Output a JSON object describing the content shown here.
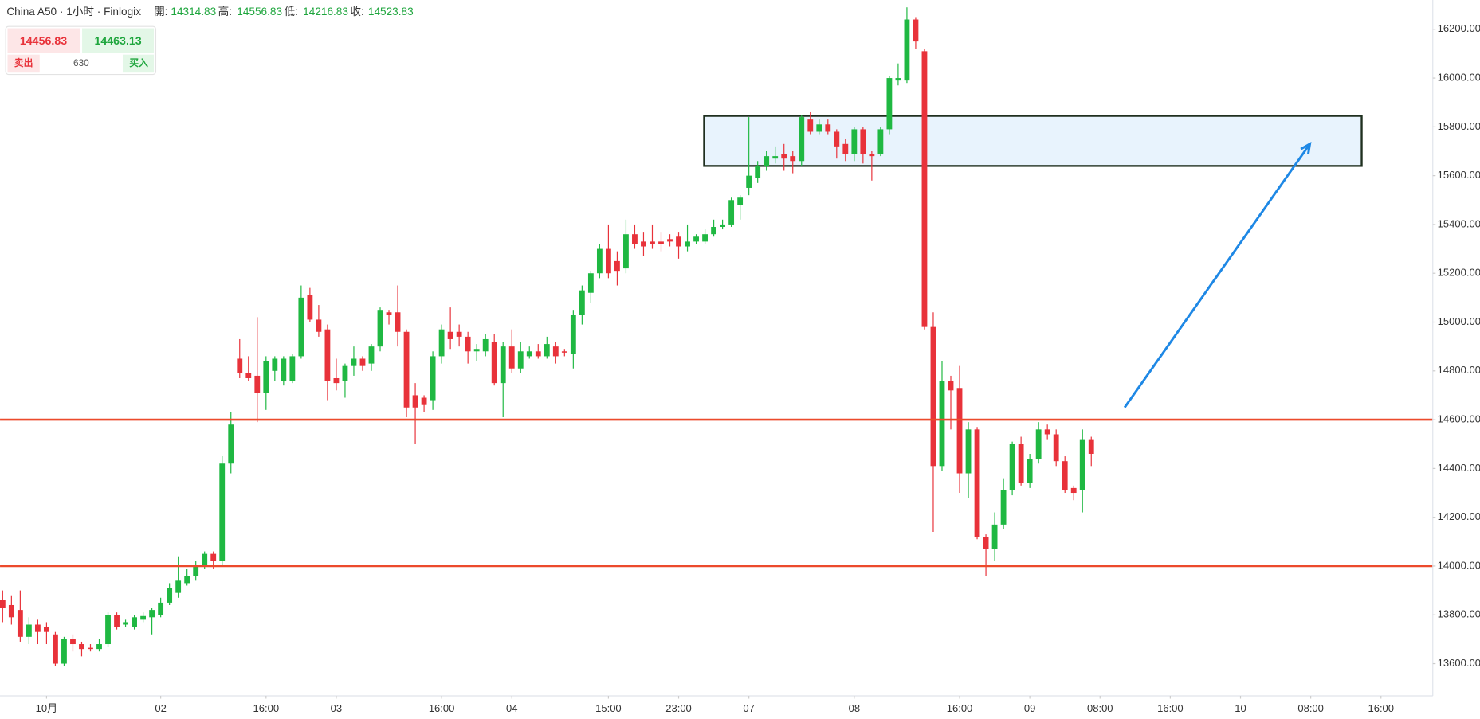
{
  "header": {
    "title": "China A50 · 1小时 · Finlogix",
    "open_label": "開:",
    "open": "14314.83",
    "high_label": "高:",
    "high": "14556.83",
    "low_label": "低:",
    "low": "14216.83",
    "close_label": "收:",
    "close": "14523.83"
  },
  "quote": {
    "sell_price": "14456.83",
    "buy_price": "14463.13",
    "sell_label": "卖出",
    "spread": "630",
    "buy_label": "买入"
  },
  "chart_data": {
    "type": "candlestick",
    "up_color": "#1fb842",
    "down_color": "#e8323a",
    "open": [
      13860,
      13840,
      13820,
      13710,
      13760,
      13750,
      13720,
      13600,
      13700,
      13680,
      13665,
      13660,
      13680,
      13800,
      13760,
      13750,
      13780,
      13790,
      13800,
      13850,
      13890,
      13930,
      13960,
      14000,
      14050,
      14020,
      14420,
      14850,
      14790,
      14780,
      14710,
      14800,
      14760,
      14760,
      14860,
      15110,
      15010,
      14970,
      14770,
      14760,
      14820,
      14850,
      14830,
      14900,
      15040,
      15040,
      14960,
      14700,
      14690,
      14680,
      14860,
      14960,
      14960,
      14940,
      14880,
      14880,
      14920,
      14750,
      14900,
      14810,
      14860,
      14880,
      14860,
      14900,
      14880,
      14870,
      15030,
      15120,
      15200,
      15300,
      15250,
      15220,
      15360,
      15330,
      15330,
      15330,
      15340,
      15350,
      15310,
      15330,
      15330,
      15360,
      15390,
      15400,
      15480,
      15550,
      15590,
      15640,
      15670,
      15690,
      15680,
      15660,
      15830,
      15780,
      15810,
      15780,
      15730,
      15690,
      15790,
      15690,
      15690,
      15790,
      15990,
      15990,
      16240,
      16110,
      14980,
      14410,
      14760,
      14730,
      14380,
      14560,
      14120,
      14070,
      14170,
      14310,
      14500,
      14340,
      14440,
      14560,
      14540,
      14430,
      14320,
      14310,
      14520
    ],
    "high": [
      13900,
      13880,
      13900,
      13790,
      13780,
      13770,
      13730,
      13710,
      13720,
      13690,
      13680,
      13700,
      13810,
      13810,
      13780,
      13800,
      13810,
      13830,
      13870,
      13930,
      14040,
      13990,
      14020,
      14060,
      14060,
      14450,
      14630,
      14930,
      14860,
      15020,
      14860,
      14860,
      14860,
      14870,
      15150,
      15140,
      15070,
      14990,
      14850,
      14830,
      14900,
      14860,
      14910,
      15060,
      15050,
      15150,
      14970,
      14750,
      14700,
      14880,
      14990,
      15060,
      14990,
      14960,
      14910,
      14950,
      14950,
      14920,
      14970,
      14920,
      14900,
      14910,
      14940,
      14920,
      14890,
      15050,
      15150,
      15210,
      15320,
      15400,
      15290,
      15420,
      15400,
      15370,
      15400,
      15370,
      15360,
      15370,
      15400,
      15360,
      15380,
      15420,
      15420,
      15510,
      15520,
      15840,
      15660,
      15700,
      15720,
      15730,
      15700,
      15850,
      15860,
      15830,
      15830,
      15790,
      15750,
      15800,
      15800,
      15700,
      15800,
      16010,
      16060,
      16290,
      16250,
      16120,
      15040,
      14840,
      14780,
      14820,
      14590,
      14570,
      14130,
      14220,
      14360,
      14510,
      14530,
      14460,
      14590,
      14580,
      14560,
      14450,
      14330,
      14560,
      14530
    ],
    "low": [
      13770,
      13760,
      13690,
      13680,
      13680,
      13680,
      13590,
      13590,
      13650,
      13630,
      13650,
      13650,
      13670,
      13740,
      13750,
      13740,
      13770,
      13720,
      13790,
      13840,
      13870,
      13920,
      13940,
      13990,
      13990,
      14000,
      14380,
      14770,
      14760,
      14590,
      14640,
      14760,
      14740,
      14750,
      14850,
      15000,
      14940,
      14680,
      14720,
      14690,
      14780,
      14800,
      14800,
      14880,
      14990,
      14900,
      14610,
      14500,
      14630,
      14640,
      14830,
      14890,
      14900,
      14830,
      14840,
      14860,
      14740,
      14610,
      14790,
      14790,
      14850,
      14850,
      14850,
      14830,
      14860,
      14810,
      14990,
      15080,
      15180,
      15180,
      15150,
      15200,
      15300,
      15270,
      15300,
      15290,
      15310,
      15260,
      15290,
      15320,
      15320,
      15350,
      15380,
      15390,
      15420,
      15520,
      15570,
      15620,
      15650,
      15620,
      15610,
      15640,
      15770,
      15770,
      15770,
      15670,
      15660,
      15660,
      15650,
      15580,
      15680,
      15770,
      15970,
      15980,
      16120,
      14970,
      14140,
      14390,
      14560,
      14300,
      14280,
      14110,
      13960,
      14020,
      14150,
      14290,
      14330,
      14320,
      14420,
      14520,
      14410,
      14300,
      14270,
      14220,
      14410
    ],
    "close": [
      13830,
      13790,
      13710,
      13760,
      13730,
      13730,
      13600,
      13700,
      13680,
      13660,
      13660,
      13680,
      13800,
      13750,
      13770,
      13790,
      13795,
      13820,
      13850,
      13910,
      13940,
      13960,
      14000,
      14050,
      14020,
      14420,
      14580,
      14790,
      14770,
      14710,
      14840,
      14850,
      14850,
      14860,
      15100,
      15010,
      14960,
      14760,
      14750,
      14820,
      14850,
      14820,
      14900,
      15050,
      15030,
      14960,
      14650,
      14650,
      14660,
      14860,
      14970,
      14930,
      14940,
      14880,
      14890,
      14930,
      14750,
      14900,
      14810,
      14880,
      14880,
      14860,
      14910,
      14860,
      14875,
      15030,
      15130,
      15200,
      15300,
      15200,
      15210,
      15360,
      15320,
      15310,
      15320,
      15320,
      15330,
      15310,
      15330,
      15350,
      15360,
      15390,
      15400,
      15500,
      15510,
      15600,
      15640,
      15680,
      15680,
      15670,
      15660,
      15840,
      15780,
      15810,
      15780,
      15720,
      15690,
      15790,
      15690,
      15680,
      15790,
      16000,
      16000,
      16240,
      16150,
      14980,
      14410,
      14760,
      14720,
      14380,
      14560,
      14120,
      14070,
      14170,
      14310,
      14500,
      14340,
      14440,
      14560,
      14540,
      14430,
      14310,
      14300,
      14520,
      14460
    ],
    "xlim": [
      -0.3,
      162.9
    ],
    "xticks": [
      {
        "value": 5,
        "label": "10月"
      },
      {
        "value": 18,
        "label": "02"
      },
      {
        "value": 30,
        "label": "16:00"
      },
      {
        "value": 38,
        "label": "03"
      },
      {
        "value": 50,
        "label": "16:00"
      },
      {
        "value": 58,
        "label": "04"
      },
      {
        "value": 69,
        "label": "15:00"
      },
      {
        "value": 77,
        "label": "23:00"
      },
      {
        "value": 85,
        "label": "07"
      },
      {
        "value": 97,
        "label": "08"
      },
      {
        "value": 109,
        "label": "16:00"
      },
      {
        "value": 117,
        "label": "09"
      },
      {
        "value": 125,
        "label": "08:00"
      },
      {
        "value": 133,
        "label": "16:00"
      },
      {
        "value": 141,
        "label": "10"
      },
      {
        "value": 149,
        "label": "08:00"
      },
      {
        "value": 157,
        "label": "16:00"
      }
    ],
    "ylim": [
      13468,
      16320
    ],
    "yticks": [
      {
        "value": 13600,
        "label": "13600.00"
      },
      {
        "value": 13800,
        "label": "13800.00"
      },
      {
        "value": 14000,
        "label": "14000.00"
      },
      {
        "value": 14200,
        "label": "14200.00"
      },
      {
        "value": 14400,
        "label": "14400.00"
      },
      {
        "value": 14600,
        "label": "14600.00"
      },
      {
        "value": 14800,
        "label": "14800.00"
      },
      {
        "value": 15000,
        "label": "15000.00"
      },
      {
        "value": 15200,
        "label": "15200.00"
      },
      {
        "value": 15400,
        "label": "15400.00"
      },
      {
        "value": 15600,
        "label": "15600.00"
      },
      {
        "value": 15800,
        "label": "15800.00"
      },
      {
        "value": 16000,
        "label": "16000.00"
      },
      {
        "value": 16200,
        "label": "16200.00"
      }
    ],
    "hlines": [
      {
        "value": 14600,
        "color": "#ec4a2c"
      },
      {
        "value": 14000,
        "color": "#ec4a2c"
      }
    ],
    "zone": {
      "x": [
        79.9,
        154.8
      ],
      "y": [
        15640,
        15845
      ],
      "fill": "#e8f3fd",
      "stroke": "#1f2f1f"
    },
    "arrow": {
      "x": [
        127.8,
        148.9
      ],
      "y": [
        14650,
        15730
      ],
      "color": "#1e88e5"
    }
  }
}
